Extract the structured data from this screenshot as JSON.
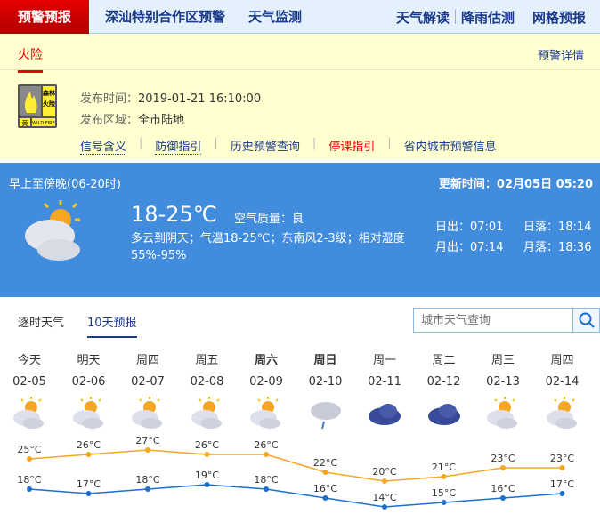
{
  "top_nav": {
    "active": "预警预报",
    "items": [
      "深汕特别合作区预警",
      "天气监测"
    ],
    "right": [
      "天气解读",
      "降雨估测",
      "网格预报"
    ]
  },
  "warning": {
    "tab": "火险",
    "detail_link": "预警详情",
    "signal": {
      "text_top": "森林火险",
      "level": "黄",
      "en": "WILD FIRE"
    },
    "time_label": "发布时间：",
    "time": "2019-01-21 16:10:00",
    "area_label": "发布区域：",
    "area": "全市陆地",
    "links": [
      "信号含义",
      "防御指引",
      "历史预警查询",
      "停课指引",
      "省内城市预警信息"
    ]
  },
  "today": {
    "period": "早上至傍晚(06-20时)",
    "update": "更新时间：02月05日 05:20",
    "temp": "18-25℃",
    "aqi": "空气质量：良",
    "desc": "多云到阴天；气温18-25℃；东南风2-3级；相对湿度55%-95%",
    "sunrise": "日出：07:01",
    "sunset": "日落：18:14",
    "moonrise": "月出：07:14",
    "moonset": "月落：18:36",
    "icon": "partly-cloudy-icon"
  },
  "tabs": [
    "逐时天气",
    "10天预报"
  ],
  "search": {
    "placeholder": "城市天气查询"
  },
  "colors": {
    "high": "#f5a623",
    "low": "#1a6fd0",
    "nav_active": "#d40000",
    "panel": "#418cdc"
  },
  "chart_data": {
    "type": "line",
    "categories": [
      "今天",
      "明天",
      "周四",
      "周五",
      "周六",
      "周日",
      "周一",
      "周二",
      "周三",
      "周四"
    ],
    "dates": [
      "02-05",
      "02-06",
      "02-07",
      "02-08",
      "02-09",
      "02-10",
      "02-11",
      "02-12",
      "02-13",
      "02-14"
    ],
    "icons": [
      "partly-cloudy",
      "partly-cloudy",
      "partly-cloudy",
      "partly-cloudy",
      "partly-cloudy",
      "rain",
      "overcast",
      "overcast",
      "partly-cloudy",
      "partly-cloudy"
    ],
    "series": [
      {
        "values": [
          25,
          26,
          27,
          26,
          26,
          22,
          20,
          21,
          23,
          23
        ]
      },
      {
        "values": [
          18,
          17,
          18,
          19,
          18,
          16,
          14,
          15,
          16,
          17
        ]
      }
    ],
    "unit": "°C"
  }
}
